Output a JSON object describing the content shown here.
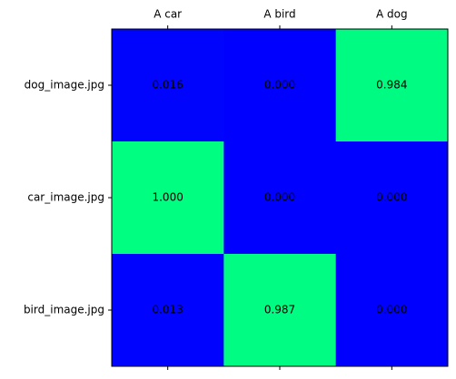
{
  "chart_data": {
    "type": "heatmap",
    "x_categories": [
      "A car",
      "A bird",
      "A dog"
    ],
    "y_categories": [
      "dog_image.jpg",
      "car_image.jpg",
      "bird_image.jpg"
    ],
    "values": [
      [
        0.016,
        0,
        0.984
      ],
      [
        1,
        0,
        0
      ],
      [
        0.013,
        0.987,
        0
      ]
    ],
    "value_labels": [
      [
        "0.016",
        "0.000",
        "0.984"
      ],
      [
        "1.000",
        "0.000",
        "0.000"
      ],
      [
        "0.013",
        "0.987",
        "0.000"
      ]
    ],
    "colormap": [
      "#0000ff",
      "#00ff80"
    ]
  }
}
